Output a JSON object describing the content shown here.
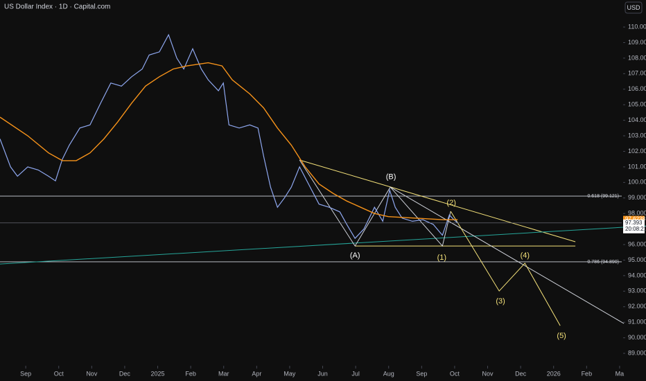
{
  "chart_data": {
    "type": "line",
    "title": "US Dollar Index · 1D · Capital.com",
    "currency": "USD",
    "grid": false,
    "xlim": [
      -0.78,
      18.8
    ],
    "ylim": [
      88.2,
      111.74
    ],
    "xticks": [
      {
        "value": 0,
        "label": "Sep"
      },
      {
        "value": 1,
        "label": "Oct"
      },
      {
        "value": 2,
        "label": "Nov"
      },
      {
        "value": 3,
        "label": "Dec"
      },
      {
        "value": 4,
        "label": "2025"
      },
      {
        "value": 5,
        "label": "Feb"
      },
      {
        "value": 6,
        "label": "Mar"
      },
      {
        "value": 7,
        "label": "Apr"
      },
      {
        "value": 8,
        "label": "May"
      },
      {
        "value": 9,
        "label": "Jun"
      },
      {
        "value": 10,
        "label": "Jul"
      },
      {
        "value": 11,
        "label": "Aug"
      },
      {
        "value": 12,
        "label": "Sep"
      },
      {
        "value": 13,
        "label": "Oct"
      },
      {
        "value": 14,
        "label": "Nov"
      },
      {
        "value": 15,
        "label": "Dec"
      },
      {
        "value": 16,
        "label": "2026"
      },
      {
        "value": 17,
        "label": "Feb"
      },
      {
        "value": 18,
        "label": "Ma"
      }
    ],
    "yticks": [
      {
        "value": 89,
        "label": "89.000"
      },
      {
        "value": 90,
        "label": "90.000"
      },
      {
        "value": 91,
        "label": "91.000"
      },
      {
        "value": 92,
        "label": "92.000"
      },
      {
        "value": 93,
        "label": "93.000"
      },
      {
        "value": 94,
        "label": "94.000"
      },
      {
        "value": 95,
        "label": "95.000"
      },
      {
        "value": 96,
        "label": "96.000"
      },
      {
        "value": 97,
        "label": "97.000"
      },
      {
        "value": 98,
        "label": "98.000"
      },
      {
        "value": 99,
        "label": "99.000"
      },
      {
        "value": 100,
        "label": "100.000"
      },
      {
        "value": 101,
        "label": "101.000"
      },
      {
        "value": 102,
        "label": "102.000"
      },
      {
        "value": 103,
        "label": "103.000"
      },
      {
        "value": 104,
        "label": "104.000"
      },
      {
        "value": 105,
        "label": "105.000"
      },
      {
        "value": 106,
        "label": "106.000"
      },
      {
        "value": 107,
        "label": "107.000"
      },
      {
        "value": 108,
        "label": "108.000"
      },
      {
        "value": 109,
        "label": "109.000"
      },
      {
        "value": 110,
        "label": "110.000"
      }
    ],
    "series": [
      {
        "color": "#8fa8f0",
        "x": [
          -0.78,
          -0.46,
          -0.25,
          0.06,
          0.38,
          0.69,
          0.9,
          1.11,
          1.32,
          1.64,
          1.95,
          2.27,
          2.58,
          2.9,
          3.21,
          3.53,
          3.74,
          4.05,
          4.33,
          4.58,
          4.79,
          5.06,
          5.32,
          5.53,
          5.84,
          5.99,
          6.16,
          6.47,
          6.79,
          7.04,
          7.21,
          7.42,
          7.63,
          7.84,
          8.05,
          8.3,
          8.57,
          8.89,
          9.2,
          9.52,
          9.73,
          9.98,
          10.25,
          10.57,
          10.82,
          11.03,
          11.2,
          11.41,
          11.72,
          12.04,
          12.35,
          12.63,
          12.84,
          12.98,
          13.09
        ],
        "values": [
          102.8,
          101.0,
          100.4,
          101.0,
          100.8,
          100.4,
          100.1,
          101.5,
          102.4,
          103.5,
          103.7,
          105.1,
          106.4,
          106.2,
          106.8,
          107.3,
          108.2,
          108.4,
          109.5,
          108.0,
          107.3,
          108.6,
          107.3,
          106.6,
          105.9,
          106.4,
          103.7,
          103.5,
          103.7,
          103.5,
          101.7,
          99.7,
          98.4,
          99.0,
          99.7,
          101.0,
          99.9,
          98.6,
          98.4,
          98.1,
          97.3,
          96.4,
          97.0,
          98.4,
          97.5,
          99.5,
          98.4,
          97.7,
          97.5,
          97.6,
          97.3,
          96.6,
          97.9,
          97.6,
          97.393
        ]
      },
      {
        "color": "#f7931a",
        "x": [
          -0.78,
          0.06,
          0.69,
          1.11,
          1.53,
          1.95,
          2.37,
          2.79,
          3.21,
          3.63,
          4.05,
          4.47,
          4.89,
          5.53,
          5.95,
          6.26,
          6.79,
          7.21,
          7.63,
          8.05,
          8.47,
          8.89,
          9.31,
          9.73,
          10.15,
          10.57,
          10.99,
          11.83,
          12.67,
          13.09
        ],
        "values": [
          104.2,
          103.0,
          101.9,
          101.4,
          101.4,
          101.9,
          102.8,
          103.9,
          105.1,
          106.2,
          106.8,
          107.3,
          107.5,
          107.7,
          107.5,
          106.6,
          105.7,
          104.8,
          103.5,
          102.4,
          101.0,
          99.9,
          99.3,
          98.8,
          98.4,
          98.0,
          97.8,
          97.7,
          97.6,
          97.6
        ]
      }
    ],
    "levels": [
      {
        "label": "0.618 (99.121)",
        "value": 99.121
      },
      {
        "label": "0.786 (94.890)",
        "value": 94.89
      }
    ],
    "price_labels": [
      {
        "label": "97.6238",
        "value": 97.6238,
        "color": "#f7931a"
      },
      {
        "label": "97.393",
        "value": 97.393,
        "color": "#ffffff",
        "countdown": "20:08:21"
      }
    ],
    "drawings": [
      {
        "color": "#f5e27a",
        "x": [
          8.3,
          16.66
        ],
        "y": [
          101.44,
          96.18
        ]
      },
      {
        "color": "#f5e27a",
        "x": [
          9.98,
          16.66
        ],
        "y": [
          95.91,
          95.91
        ]
      },
      {
        "color": "#26a69a",
        "x": [
          -0.78,
          18.8
        ],
        "y": [
          94.75,
          97.2
        ]
      },
      {
        "color": "#d1d4dc",
        "x": [
          11.05,
          18.13
        ],
        "y": [
          99.7,
          90.92
        ]
      },
      {
        "color": "#d1d4dc",
        "x": [
          8.3,
          9.98,
          11.05,
          12.63,
          12.88
        ],
        "y": [
          101.44,
          95.91,
          99.7,
          95.91,
          98.14
        ]
      },
      {
        "color": "#f5e27a",
        "x": [
          12.88,
          14.35,
          15.13,
          16.2
        ],
        "y": [
          98.14,
          93.01,
          94.8,
          90.78
        ]
      }
    ],
    "annotations": [
      {
        "label": "(A)",
        "x": 9.98,
        "y": 95.29,
        "color": "#ffffff"
      },
      {
        "label": "(B)",
        "x": 11.07,
        "y": 100.34,
        "color": "#ffffff"
      },
      {
        "label": "(1)",
        "x": 12.61,
        "y": 95.15,
        "color": "#f5e27a"
      },
      {
        "label": "(2)",
        "x": 12.9,
        "y": 98.68,
        "color": "#f5e27a"
      },
      {
        "label": "(3)",
        "x": 14.39,
        "y": 92.34,
        "color": "#f5e27a"
      },
      {
        "label": "(4)",
        "x": 15.13,
        "y": 95.29,
        "color": "#f5e27a"
      },
      {
        "label": "(5)",
        "x": 16.24,
        "y": 90.12,
        "color": "#f5e27a"
      }
    ]
  }
}
